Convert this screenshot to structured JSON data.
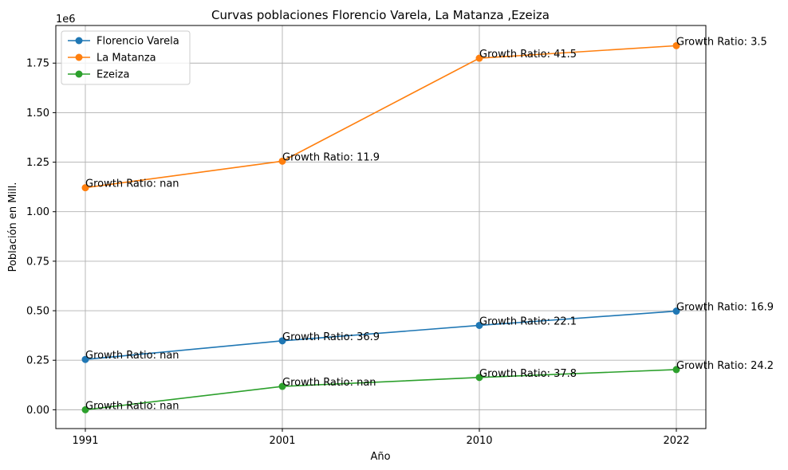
{
  "chart_data": {
    "type": "line",
    "title": "Curvas poblaciones Florencio Varela, La Matanza ,Ezeiza",
    "xlabel": "Año",
    "ylabel": "Población en Mill.",
    "y_offset_text": "1e6",
    "categories": [
      "1991",
      "2001",
      "2010",
      "2022"
    ],
    "yticks": [
      0.0,
      0.25,
      0.5,
      0.75,
      1.0,
      1.25,
      1.5,
      1.75
    ],
    "ytick_labels": [
      "0.00",
      "0.25",
      "0.50",
      "0.75",
      "1.00",
      "1.25",
      "1.50",
      "1.75"
    ],
    "ylim": [
      -0.095,
      1.94
    ],
    "grid": true,
    "legend_position": "upper-left",
    "series": [
      {
        "name": "Florencio Varela",
        "color": "#1f77b4",
        "values": [
          0.254,
          0.348,
          0.426,
          0.498
        ],
        "annotations": [
          "Growth Ratio: nan",
          "Growth Ratio: 36.9",
          "Growth Ratio: 22.1",
          "Growth Ratio: 16.9"
        ]
      },
      {
        "name": "La Matanza",
        "color": "#ff7f0e",
        "values": [
          1.121,
          1.255,
          1.775,
          1.838
        ],
        "annotations": [
          "Growth Ratio: nan",
          "Growth Ratio: 11.9",
          "Growth Ratio: 41.5",
          "Growth Ratio: 3.5"
        ]
      },
      {
        "name": "Ezeiza",
        "color": "#2ca02c",
        "values": [
          0.0,
          0.118,
          0.163,
          0.203
        ],
        "annotations": [
          "Growth Ratio: nan",
          "Growth Ratio: nan",
          "Growth Ratio: 37.8",
          "Growth Ratio: 24.2"
        ]
      }
    ]
  }
}
